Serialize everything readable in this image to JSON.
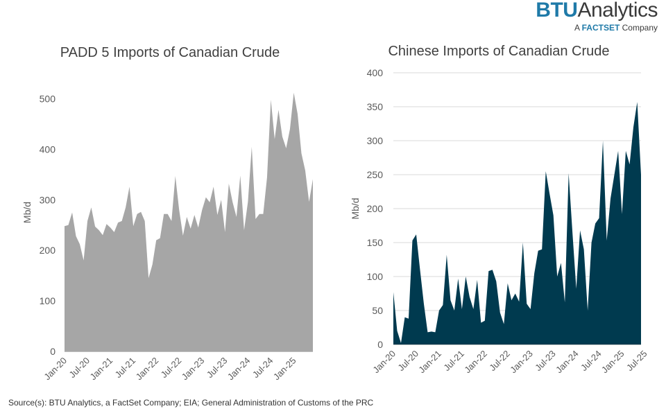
{
  "logo": {
    "brand": "BTU",
    "word": "Analytics",
    "tagline_pre": "A",
    "tagline_brand": "FACTSET",
    "tagline_post": "Company"
  },
  "source": "Source(s): BTU Analytics, a FactSet Company; EIA; General Administration of Customs of the PRC",
  "colors": {
    "left_fill": "#a6a6a6",
    "right_fill": "#003a4f",
    "grid": "#d9d9d9",
    "axis": "#595959"
  },
  "chart_data": [
    {
      "type": "area",
      "title": "PADD 5 Imports of Canadian Crude",
      "ylabel": "Mb/d",
      "xlabel": "",
      "ylim": [
        0,
        550
      ],
      "yticks": [
        0,
        100,
        200,
        300,
        400,
        500
      ],
      "grid": false,
      "start": "Jan-20",
      "tick_labels": [
        "Jan-20",
        "Jul-20",
        "Jan-21",
        "Jul-21",
        "Jan-22",
        "Jul-22",
        "Jan-23",
        "Jul-23",
        "Jan-24",
        "Jul-24",
        "Jan-25"
      ],
      "tick_step": 6,
      "series": [
        {
          "values": [
            248,
            250,
            275,
            228,
            212,
            180,
            258,
            285,
            247,
            240,
            230,
            252,
            245,
            236,
            255,
            258,
            285,
            326,
            248,
            272,
            276,
            258,
            145,
            172,
            220,
            224,
            272,
            272,
            258,
            347,
            280,
            229,
            266,
            243,
            270,
            245,
            280,
            305,
            295,
            326,
            270,
            300,
            236,
            332,
            295,
            266,
            348,
            240,
            296,
            405,
            262,
            272,
            272,
            344,
            498,
            420,
            478,
            425,
            402,
            440,
            512,
            470,
            392,
            358,
            296,
            341
          ]
        }
      ]
    },
    {
      "type": "area",
      "title": "Chinese Imports of Canadian Crude",
      "ylabel": "Mb/d",
      "xlabel": "",
      "ylim": [
        0,
        400
      ],
      "yticks": [
        0,
        50,
        100,
        150,
        200,
        250,
        300,
        350,
        400
      ],
      "grid": true,
      "start": "Jan-20",
      "tick_labels": [
        "Jan-20",
        "Jul-20",
        "Jan-21",
        "Jul-21",
        "Jan-22",
        "Jul-22",
        "Jan-23",
        "Jul-23",
        "Jan-24",
        "Jul-24",
        "Jan-25",
        "Jul-25"
      ],
      "tick_step": 6,
      "series": [
        {
          "values": [
            77,
            20,
            2,
            40,
            38,
            153,
            162,
            110,
            60,
            18,
            19,
            18,
            50,
            58,
            132,
            65,
            50,
            97,
            52,
            100,
            70,
            52,
            95,
            32,
            35,
            108,
            110,
            93,
            47,
            30,
            90,
            65,
            75,
            63,
            150,
            60,
            52,
            105,
            138,
            140,
            255,
            222,
            190,
            100,
            120,
            62,
            252,
            165,
            82,
            168,
            140,
            50,
            150,
            178,
            186,
            300,
            153,
            215,
            250,
            285,
            192,
            285,
            265,
            320,
            357,
            250
          ]
        }
      ]
    }
  ]
}
